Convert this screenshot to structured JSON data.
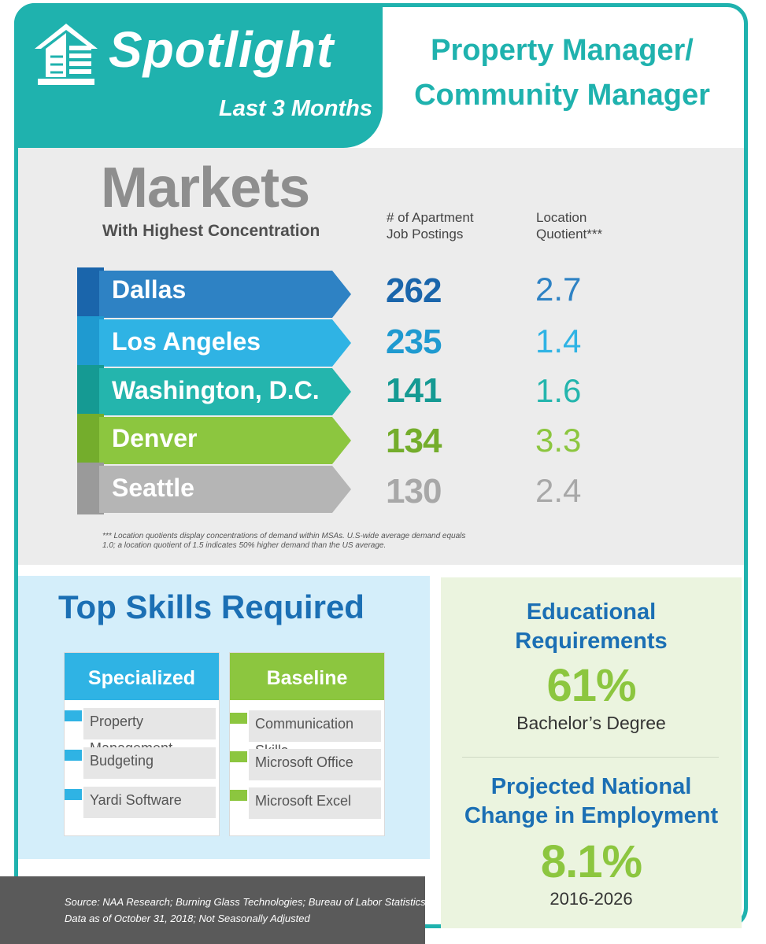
{
  "header": {
    "title": "Spotlight",
    "subtitle": "Last 3 Months",
    "job_title_line1": "Property Manager/",
    "job_title_line2": "Community Manager"
  },
  "markets": {
    "title": "Markets",
    "subtitle": "With Highest Concentration",
    "col_postings_line1": "# of Apartment",
    "col_postings_line2": "Job Postings",
    "col_lq_line1": "Location",
    "col_lq_line2": "Quotient***",
    "rows": [
      {
        "city": "Dallas",
        "postings": "262",
        "lq": "2.7",
        "color": "#2e82c4",
        "side": "#1a65ab"
      },
      {
        "city": "Los Angeles",
        "postings": "235",
        "lq": "1.4",
        "color": "#2fb3e4",
        "side": "#1f9ad0"
      },
      {
        "city": "Washington, D.C.",
        "postings": "141",
        "lq": "1.6",
        "color": "#24b5ad",
        "side": "#159a93"
      },
      {
        "city": "Denver",
        "postings": "134",
        "lq": "3.3",
        "color": "#8cc63f",
        "side": "#74ad2c"
      },
      {
        "city": "Seattle",
        "postings": "130",
        "lq": "2.4",
        "color": "#b5b5b5",
        "side": "#9a9a9a"
      }
    ],
    "footnote": "*** Location quotients display concentrations of demand within MSAs. U.S-wide average demand equals 1.0; a location quotient of 1.5 indicates 50% higher demand than the US average."
  },
  "skills": {
    "title": "Top Skills Required",
    "specialized": {
      "label": "Specialized",
      "color": "#2fb3e4",
      "items": [
        "Property Management",
        "Budgeting",
        "Yardi Software"
      ]
    },
    "baseline": {
      "label": "Baseline",
      "color": "#8cc63f",
      "items": [
        "Communication Skills",
        "Microsoft Office",
        "Microsoft Excel"
      ]
    }
  },
  "education": {
    "title_line1": "Educational",
    "title_line2": "Requirements",
    "percent": "61%",
    "degree": "Bachelor’s Degree",
    "proj_line1": "Projected National",
    "proj_line2": "Change in Employment",
    "proj_value": "8.1%",
    "proj_range": "2016-2026"
  },
  "source": {
    "line1": "Source:  NAA Research; Burning Glass Technologies; Bureau of Labor Statistics",
    "line2": "Data as of October 31, 2018; Not Seasonally Adjusted"
  },
  "colors": {
    "teal": "#1fb2ae",
    "blue_heading": "#1b6fb4",
    "green": "#8cc63f"
  }
}
